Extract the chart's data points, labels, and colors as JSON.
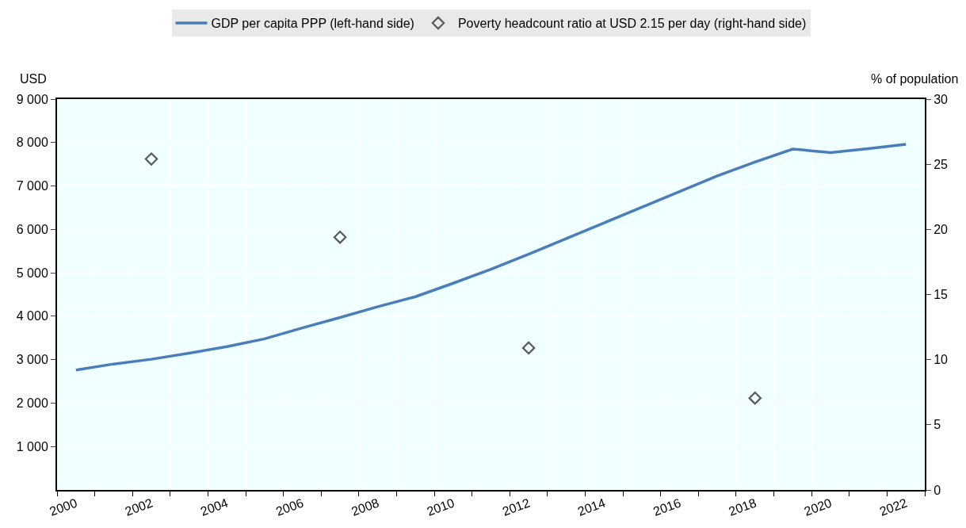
{
  "chart_data": {
    "type": "line",
    "categories": [
      "2000",
      null,
      "2002",
      null,
      "2004",
      null,
      "2006",
      null,
      "2008",
      null,
      "2010",
      null,
      "2012",
      null,
      "2014",
      null,
      "2016",
      null,
      "2018",
      null,
      "2020",
      null,
      "2022"
    ],
    "series": [
      {
        "name": "GDP per capita PPP (left-hand side)",
        "color": "#4a7ebb",
        "values": [
          2760,
          2900,
          3010,
          3150,
          3300,
          3480,
          3730,
          3970,
          4220,
          4450,
          4760,
          5080,
          5430,
          5790,
          6150,
          6510,
          6870,
          7230,
          7550,
          7850,
          7770,
          7860,
          7960
        ]
      },
      {
        "name": "Poverty headcount ratio at USD 2.15 per day (right-hand side)",
        "color": "#595959",
        "type": "scatter",
        "marker": "diamond",
        "axis": "y2",
        "values": [
          null,
          null,
          25.4,
          null,
          null,
          null,
          null,
          19.4,
          null,
          null,
          null,
          null,
          10.9,
          null,
          null,
          null,
          null,
          null,
          7.05,
          null,
          null,
          null,
          null
        ]
      }
    ],
    "ylabel": "USD",
    "y2label": "% of population",
    "ylim": [
      0,
      9000
    ],
    "yticks": [
      {
        "value": 1000,
        "label": "1 000"
      },
      {
        "value": 2000,
        "label": "2 000"
      },
      {
        "value": 3000,
        "label": "3 000"
      },
      {
        "value": 4000,
        "label": "4 000"
      },
      {
        "value": 5000,
        "label": "5 000"
      },
      {
        "value": 6000,
        "label": "6 000"
      },
      {
        "value": 7000,
        "label": "7 000"
      },
      {
        "value": 8000,
        "label": "8 000"
      },
      {
        "value": 9000,
        "label": "9 000"
      }
    ],
    "y2lim": [
      0,
      30
    ],
    "y2ticks": [
      0,
      5,
      10,
      15,
      20,
      25,
      30
    ],
    "grid": true,
    "legend": "top"
  }
}
